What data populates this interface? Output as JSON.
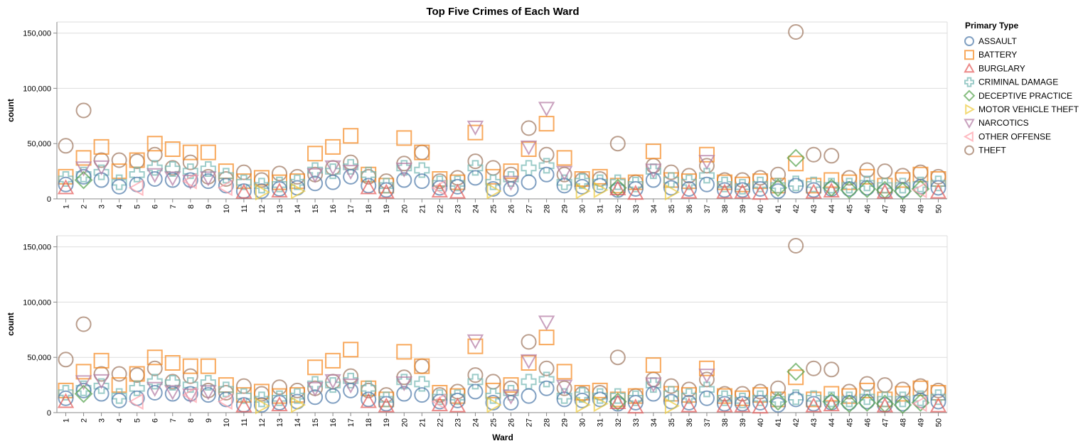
{
  "chart_data": {
    "type": "scatter",
    "title": "Top Five Crimes of Each Ward",
    "xlabel": "Ward",
    "ylabel": "count",
    "ylim": [
      0,
      160000
    ],
    "y_ticks": [
      0,
      50000,
      100000,
      150000
    ],
    "y_tick_labels": [
      "0",
      "50,000",
      "100,000",
      "150,000"
    ],
    "categories": [
      "1",
      "2",
      "3",
      "4",
      "5",
      "6",
      "7",
      "8",
      "9",
      "10",
      "11",
      "12",
      "13",
      "14",
      "15",
      "16",
      "17",
      "18",
      "19",
      "20",
      "21",
      "22",
      "23",
      "24",
      "25",
      "26",
      "27",
      "28",
      "29",
      "30",
      "31",
      "32",
      "33",
      "34",
      "35",
      "36",
      "37",
      "38",
      "39",
      "40",
      "41",
      "42",
      "43",
      "44",
      "45",
      "46",
      "47",
      "48",
      "49",
      "50"
    ],
    "grid": true,
    "panels": 2,
    "legend": {
      "title": "Primary Type",
      "position": "right",
      "entries": [
        {
          "name": "ASSAULT",
          "color": "#4c78a8",
          "shape": "circle"
        },
        {
          "name": "BATTERY",
          "color": "#f58518",
          "shape": "square"
        },
        {
          "name": "BURGLARY",
          "color": "#e45756",
          "shape": "triangle-up"
        },
        {
          "name": "CRIMINAL DAMAGE",
          "color": "#72b7b2",
          "shape": "cross"
        },
        {
          "name": "DECEPTIVE PRACTICE",
          "color": "#54a24b",
          "shape": "diamond"
        },
        {
          "name": "MOTOR VEHICLE THEFT",
          "color": "#eeca3b",
          "shape": "triangle-right"
        },
        {
          "name": "NARCOTICS",
          "color": "#b279a2",
          "shape": "triangle-down"
        },
        {
          "name": "OTHER OFFENSE",
          "color": "#ff9da6",
          "shape": "triangle-left"
        },
        {
          "name": "THEFT",
          "color": "#9d755d",
          "shape": "circle"
        }
      ]
    },
    "series": [
      {
        "name": "THEFT",
        "points": [
          [
            1,
            48000
          ],
          [
            2,
            80000
          ],
          [
            3,
            35000
          ],
          [
            4,
            35000
          ],
          [
            5,
            34000
          ],
          [
            6,
            40000
          ],
          [
            7,
            28000
          ],
          [
            8,
            33000
          ],
          [
            9,
            20000
          ],
          [
            10,
            18000
          ],
          [
            11,
            24000
          ],
          [
            12,
            17000
          ],
          [
            13,
            23000
          ],
          [
            14,
            20000
          ],
          [
            15,
            22000
          ],
          [
            16,
            28000
          ],
          [
            17,
            33000
          ],
          [
            18,
            20000
          ],
          [
            19,
            16000
          ],
          [
            20,
            32000
          ],
          [
            21,
            42000
          ],
          [
            22,
            16000
          ],
          [
            23,
            19000
          ],
          [
            24,
            34000
          ],
          [
            25,
            28000
          ],
          [
            26,
            22000
          ],
          [
            27,
            64000
          ],
          [
            28,
            40000
          ],
          [
            29,
            22000
          ],
          [
            30,
            17000
          ],
          [
            31,
            18000
          ],
          [
            32,
            50000
          ],
          [
            33,
            15000
          ],
          [
            34,
            30000
          ],
          [
            35,
            24000
          ],
          [
            36,
            21000
          ],
          [
            37,
            30000
          ],
          [
            38,
            17000
          ],
          [
            39,
            17000
          ],
          [
            40,
            19000
          ],
          [
            41,
            22000
          ],
          [
            42,
            151000
          ],
          [
            43,
            40000
          ],
          [
            44,
            39000
          ],
          [
            45,
            19000
          ],
          [
            46,
            26000
          ],
          [
            47,
            25000
          ],
          [
            48,
            21000
          ],
          [
            49,
            24000
          ],
          [
            50,
            20000
          ]
        ]
      },
      {
        "name": "BATTERY",
        "points": [
          [
            1,
            20000
          ],
          [
            2,
            37000
          ],
          [
            3,
            47000
          ],
          [
            4,
            25000
          ],
          [
            5,
            35000
          ],
          [
            6,
            50000
          ],
          [
            7,
            45000
          ],
          [
            8,
            42000
          ],
          [
            9,
            42000
          ],
          [
            10,
            25000
          ],
          [
            11,
            16000
          ],
          [
            12,
            19000
          ],
          [
            13,
            15000
          ],
          [
            14,
            16000
          ],
          [
            15,
            41000
          ],
          [
            16,
            47000
          ],
          [
            17,
            57000
          ],
          [
            18,
            22000
          ],
          [
            19,
            12000
          ],
          [
            20,
            55000
          ],
          [
            21,
            42000
          ],
          [
            22,
            18000
          ],
          [
            23,
            15000
          ],
          [
            24,
            60000
          ],
          [
            25,
            20000
          ],
          [
            26,
            25000
          ],
          [
            27,
            45000
          ],
          [
            28,
            68000
          ],
          [
            29,
            37000
          ],
          [
            30,
            18000
          ],
          [
            31,
            20000
          ],
          [
            32,
            12000
          ],
          [
            33,
            15000
          ],
          [
            34,
            43000
          ],
          [
            35,
            17000
          ],
          [
            36,
            16000
          ],
          [
            37,
            40000
          ],
          [
            38,
            15000
          ],
          [
            39,
            13000
          ],
          [
            40,
            16000
          ],
          [
            41,
            12000
          ],
          [
            42,
            32000
          ],
          [
            43,
            12000
          ],
          [
            44,
            17000
          ],
          [
            45,
            15000
          ],
          [
            46,
            20000
          ],
          [
            47,
            12000
          ],
          [
            48,
            17000
          ],
          [
            49,
            22000
          ],
          [
            50,
            18000
          ]
        ]
      },
      {
        "name": "CRIMINAL DAMAGE",
        "points": [
          [
            1,
            18000
          ],
          [
            2,
            22000
          ],
          [
            3,
            24000
          ],
          [
            4,
            15000
          ],
          [
            5,
            22000
          ],
          [
            6,
            28000
          ],
          [
            7,
            27000
          ],
          [
            8,
            25000
          ],
          [
            9,
            27000
          ],
          [
            10,
            21000
          ],
          [
            11,
            15000
          ],
          [
            12,
            12000
          ],
          [
            13,
            13000
          ],
          [
            14,
            15000
          ],
          [
            15,
            26000
          ],
          [
            16,
            25000
          ],
          [
            17,
            29000
          ],
          [
            18,
            22000
          ],
          [
            19,
            12000
          ],
          [
            20,
            28000
          ],
          [
            21,
            26000
          ],
          [
            22,
            14000
          ],
          [
            23,
            14000
          ],
          [
            24,
            28000
          ],
          [
            25,
            15000
          ],
          [
            26,
            18000
          ],
          [
            27,
            28000
          ],
          [
            28,
            30000
          ],
          [
            29,
            15000
          ],
          [
            30,
            16000
          ],
          [
            31,
            15000
          ],
          [
            32,
            15000
          ],
          [
            33,
            13000
          ],
          [
            34,
            25000
          ],
          [
            35,
            17000
          ],
          [
            36,
            15000
          ],
          [
            37,
            21000
          ],
          [
            38,
            13000
          ],
          [
            39,
            11000
          ],
          [
            40,
            13000
          ],
          [
            41,
            12000
          ],
          [
            42,
            14000
          ],
          [
            43,
            13000
          ],
          [
            44,
            12000
          ],
          [
            45,
            12000
          ],
          [
            46,
            14000
          ],
          [
            47,
            12000
          ],
          [
            48,
            12000
          ],
          [
            49,
            13000
          ],
          [
            50,
            14000
          ]
        ]
      },
      {
        "name": "ASSAULT",
        "points": [
          [
            1,
            13000
          ],
          [
            2,
            20000
          ],
          [
            3,
            17000
          ],
          [
            4,
            11000
          ],
          [
            5,
            13000
          ],
          [
            6,
            18000
          ],
          [
            7,
            17000
          ],
          [
            8,
            17000
          ],
          [
            9,
            16000
          ],
          [
            10,
            12000
          ],
          [
            11,
            7000
          ],
          [
            12,
            7000
          ],
          [
            13,
            9000
          ],
          [
            14,
            10000
          ],
          [
            15,
            14000
          ],
          [
            16,
            15000
          ],
          [
            17,
            20000
          ],
          [
            18,
            12000
          ],
          [
            19,
            8000
          ],
          [
            20,
            17000
          ],
          [
            21,
            16000
          ],
          [
            22,
            10000
          ],
          [
            23,
            11000
          ],
          [
            24,
            19000
          ],
          [
            25,
            9000
          ],
          [
            26,
            9000
          ],
          [
            27,
            15000
          ],
          [
            28,
            22000
          ],
          [
            29,
            12000
          ],
          [
            30,
            11000
          ],
          [
            31,
            12000
          ],
          [
            32,
            8000
          ],
          [
            33,
            9000
          ],
          [
            34,
            17000
          ],
          [
            35,
            10000
          ],
          [
            36,
            9000
          ],
          [
            37,
            13000
          ],
          [
            38,
            8000
          ],
          [
            39,
            8000
          ],
          [
            40,
            9000
          ],
          [
            41,
            7000
          ],
          [
            42,
            12000
          ],
          [
            43,
            8000
          ],
          [
            44,
            9000
          ],
          [
            45,
            9000
          ],
          [
            46,
            10000
          ],
          [
            47,
            7000
          ],
          [
            48,
            8000
          ],
          [
            49,
            11000
          ],
          [
            50,
            10000
          ]
        ]
      },
      {
        "name": "NARCOTICS",
        "points": [
          [
            2,
            28000
          ],
          [
            3,
            29000
          ],
          [
            6,
            22000
          ],
          [
            7,
            19000
          ],
          [
            8,
            16000
          ],
          [
            9,
            19000
          ],
          [
            15,
            22000
          ],
          [
            16,
            29000
          ],
          [
            17,
            25000
          ],
          [
            20,
            27000
          ],
          [
            24,
            65000
          ],
          [
            26,
            15000
          ],
          [
            27,
            47000
          ],
          [
            28,
            82000
          ],
          [
            29,
            24000
          ],
          [
            34,
            26000
          ],
          [
            37,
            34000
          ]
        ]
      },
      {
        "name": "DECEPTIVE PRACTICE",
        "points": [
          [
            2,
            17000
          ],
          [
            32,
            10000
          ],
          [
            41,
            10000
          ],
          [
            42,
            37000
          ],
          [
            44,
            10000
          ],
          [
            45,
            8000
          ],
          [
            46,
            9000
          ],
          [
            47,
            8000
          ],
          [
            48,
            7000
          ],
          [
            49,
            9000
          ]
        ]
      },
      {
        "name": "BURGLARY",
        "points": [
          [
            1,
            10000
          ],
          [
            11,
            6000
          ],
          [
            13,
            7000
          ],
          [
            18,
            10000
          ],
          [
            19,
            6000
          ],
          [
            22,
            7000
          ],
          [
            23,
            6000
          ],
          [
            32,
            9000
          ],
          [
            33,
            5000
          ],
          [
            36,
            6000
          ],
          [
            38,
            6000
          ],
          [
            39,
            6000
          ],
          [
            40,
            5000
          ],
          [
            43,
            6000
          ],
          [
            44,
            7000
          ],
          [
            47,
            6000
          ],
          [
            50,
            6000
          ]
        ]
      },
      {
        "name": "MOTOR VEHICLE THEFT",
        "points": [
          [
            12,
            6000
          ],
          [
            14,
            7000
          ],
          [
            25,
            7000
          ],
          [
            30,
            7000
          ],
          [
            31,
            8000
          ],
          [
            35,
            6000
          ]
        ]
      },
      {
        "name": "OTHER OFFENSE",
        "points": [
          [
            5,
            10000
          ],
          [
            8,
            16000
          ],
          [
            10,
            10000
          ],
          [
            22,
            10000
          ],
          [
            49,
            8000
          ]
        ]
      }
    ]
  }
}
